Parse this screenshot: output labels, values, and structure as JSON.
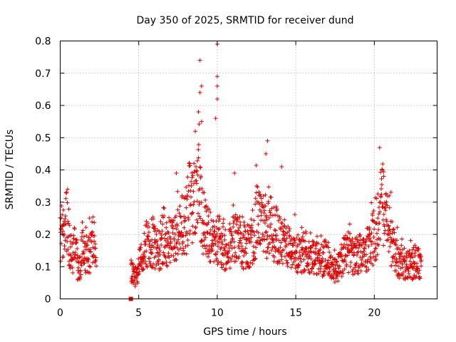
{
  "chart_data": {
    "type": "scatter",
    "title": "Day 350 of 2025, SRMTID for receiver dund",
    "xlabel": "GPS time / hours",
    "ylabel": "SRMTID / TECUs",
    "xlim": [
      0,
      24
    ],
    "ylim": [
      0,
      0.8
    ],
    "x_ticks": [
      0,
      5,
      10,
      15,
      20
    ],
    "y_ticks": [
      0,
      0.1,
      0.2,
      0.3,
      0.4,
      0.5,
      0.6,
      0.7,
      0.8
    ],
    "x_tick_labels": [
      "0",
      "5",
      "10",
      "15",
      "20"
    ],
    "y_tick_labels": [
      "0",
      "0.1",
      "0.2",
      "0.3",
      "0.4",
      "0.5",
      "0.6",
      "0.7",
      "0.8"
    ],
    "grid": true,
    "marker": "+",
    "colors": {
      "series": "#e00000",
      "grid": "#a0a0a0",
      "axis": "#000000"
    },
    "series": [
      {
        "name": "SRMTID",
        "segments": [
          {
            "x_range": [
              0.0,
              2.3
            ],
            "y_envelope": [
              [
                0.0,
                0.19
              ],
              [
                0.1,
                0.21
              ],
              [
                0.2,
                0.24
              ],
              [
                0.3,
                0.2
              ],
              [
                0.4,
                0.27
              ],
              [
                0.5,
                0.22
              ],
              [
                0.6,
                0.17
              ],
              [
                0.7,
                0.14
              ],
              [
                0.8,
                0.12
              ],
              [
                0.9,
                0.16
              ],
              [
                1.0,
                0.14
              ],
              [
                1.1,
                0.1
              ],
              [
                1.2,
                0.09
              ],
              [
                1.3,
                0.12
              ],
              [
                1.4,
                0.15
              ],
              [
                1.5,
                0.17
              ],
              [
                1.6,
                0.13
              ],
              [
                1.7,
                0.12
              ],
              [
                1.8,
                0.15
              ],
              [
                1.9,
                0.14
              ],
              [
                2.0,
                0.16
              ],
              [
                2.1,
                0.2
              ],
              [
                2.2,
                0.17
              ],
              [
                2.3,
                0.1
              ]
            ]
          },
          {
            "x_range": [
              4.5,
              23.0
            ],
            "y_envelope": [
              [
                4.5,
                0.08
              ],
              [
                4.8,
                0.07
              ],
              [
                5.0,
                0.1
              ],
              [
                5.3,
                0.15
              ],
              [
                5.6,
                0.18
              ],
              [
                6.0,
                0.17
              ],
              [
                6.3,
                0.15
              ],
              [
                6.6,
                0.2
              ],
              [
                7.0,
                0.17
              ],
              [
                7.3,
                0.18
              ],
              [
                7.6,
                0.22
              ],
              [
                8.0,
                0.24
              ],
              [
                8.3,
                0.32
              ],
              [
                8.6,
                0.3
              ],
              [
                8.8,
                0.34
              ],
              [
                9.0,
                0.26
              ],
              [
                9.3,
                0.2
              ],
              [
                9.6,
                0.19
              ],
              [
                10.0,
                0.18
              ],
              [
                10.3,
                0.17
              ],
              [
                10.6,
                0.15
              ],
              [
                11.0,
                0.18
              ],
              [
                11.3,
                0.2
              ],
              [
                11.6,
                0.17
              ],
              [
                12.0,
                0.16
              ],
              [
                12.3,
                0.2
              ],
              [
                12.6,
                0.25
              ],
              [
                13.0,
                0.2
              ],
              [
                13.3,
                0.24
              ],
              [
                13.6,
                0.21
              ],
              [
                14.0,
                0.18
              ],
              [
                14.3,
                0.17
              ],
              [
                14.6,
                0.16
              ],
              [
                15.0,
                0.15
              ],
              [
                15.3,
                0.13
              ],
              [
                15.6,
                0.15
              ],
              [
                16.0,
                0.14
              ],
              [
                16.3,
                0.13
              ],
              [
                16.6,
                0.12
              ],
              [
                17.0,
                0.13
              ],
              [
                17.3,
                0.1
              ],
              [
                17.6,
                0.09
              ],
              [
                18.0,
                0.13
              ],
              [
                18.3,
                0.15
              ],
              [
                18.6,
                0.13
              ],
              [
                19.0,
                0.14
              ],
              [
                19.3,
                0.13
              ],
              [
                19.6,
                0.15
              ],
              [
                20.0,
                0.2
              ],
              [
                20.3,
                0.25
              ],
              [
                20.5,
                0.3
              ],
              [
                20.8,
                0.22
              ],
              [
                21.0,
                0.2
              ],
              [
                21.3,
                0.14
              ],
              [
                21.6,
                0.11
              ],
              [
                22.0,
                0.11
              ],
              [
                22.3,
                0.1
              ],
              [
                22.6,
                0.12
              ],
              [
                23.0,
                0.11
              ]
            ]
          }
        ],
        "notable_points": [
          {
            "x": 8.9,
            "y": 0.74
          },
          {
            "x": 8.9,
            "y": 0.64
          },
          {
            "x": 9.0,
            "y": 0.66
          },
          {
            "x": 10.0,
            "y": 0.79
          },
          {
            "x": 10.0,
            "y": 0.69
          },
          {
            "x": 10.0,
            "y": 0.66
          },
          {
            "x": 10.0,
            "y": 0.62
          },
          {
            "x": 9.9,
            "y": 0.56
          },
          {
            "x": 8.8,
            "y": 0.58
          },
          {
            "x": 9.0,
            "y": 0.55
          },
          {
            "x": 8.6,
            "y": 0.52
          },
          {
            "x": 13.2,
            "y": 0.49
          },
          {
            "x": 13.1,
            "y": 0.45
          },
          {
            "x": 14.1,
            "y": 0.41
          },
          {
            "x": 7.4,
            "y": 0.39
          },
          {
            "x": 11.1,
            "y": 0.39
          },
          {
            "x": 20.6,
            "y": 0.38
          },
          {
            "x": 4.5,
            "y": 0.0
          }
        ]
      }
    ]
  }
}
